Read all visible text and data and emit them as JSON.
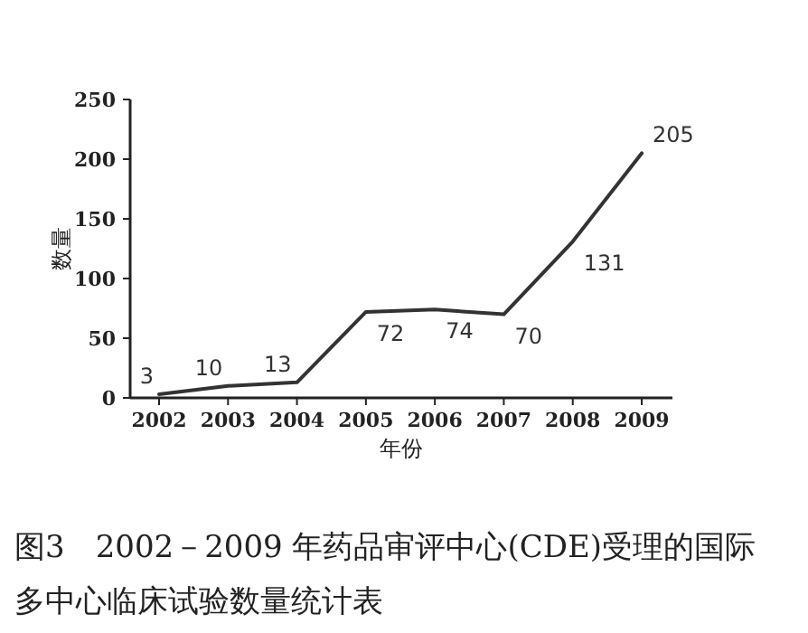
{
  "chart_data": {
    "type": "line",
    "title": "图3　2002－2009 年药品审评中心(CDE)受理的国际多中心临床试验数量统计表",
    "xlabel": "年份",
    "ylabel": "数量",
    "categories": [
      "2002",
      "2003",
      "2004",
      "2005",
      "2006",
      "2007",
      "2008",
      "2009"
    ],
    "values": [
      3,
      10,
      13,
      72,
      74,
      70,
      131,
      205
    ],
    "color": "#333333",
    "ylim": [
      0,
      250
    ],
    "yticks": [
      0,
      50,
      100,
      150,
      200,
      250
    ],
    "data_labels": true
  }
}
